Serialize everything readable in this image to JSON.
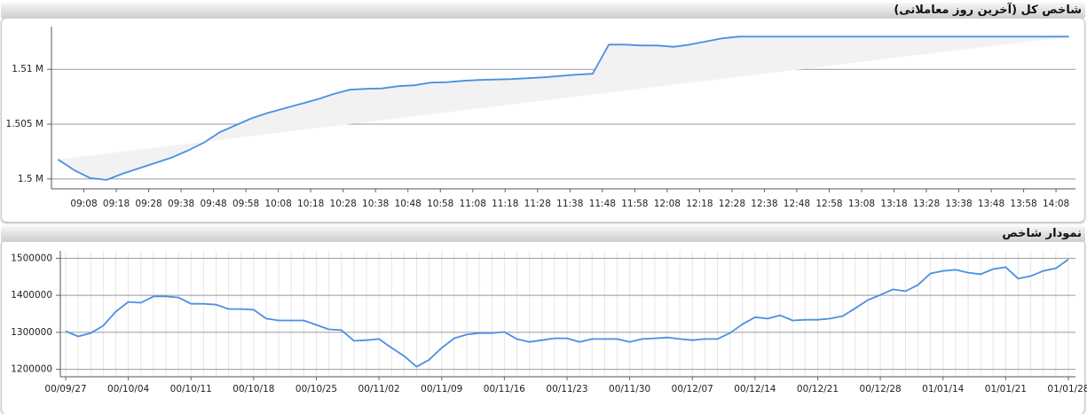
{
  "chart_data": [
    {
      "type": "line",
      "title": "شاخص کل (آخرین روز معاملاتی)",
      "x": [
        "09:00",
        "09:05",
        "09:10",
        "09:15",
        "09:20",
        "09:25",
        "09:30",
        "09:35",
        "09:40",
        "09:45",
        "09:50",
        "09:55",
        "10:00",
        "10:05",
        "10:10",
        "10:15",
        "10:20",
        "10:25",
        "10:30",
        "10:35",
        "10:40",
        "10:45",
        "10:50",
        "10:55",
        "11:00",
        "11:05",
        "11:10",
        "11:20",
        "11:30",
        "11:40",
        "11:45",
        "11:50",
        "11:55",
        "12:00",
        "12:05",
        "12:10",
        "12:15",
        "12:20",
        "12:25",
        "12:30",
        "14:12"
      ],
      "values": [
        1501774,
        1500806,
        1500081,
        1499919,
        1500484,
        1500968,
        1501452,
        1501935,
        1502581,
        1503306,
        1504274,
        1504919,
        1505565,
        1506048,
        1506452,
        1506855,
        1507258,
        1507742,
        1508145,
        1508226,
        1508266,
        1508468,
        1508548,
        1508790,
        1508831,
        1508952,
        1509032,
        1509113,
        1509274,
        1509516,
        1509597,
        1512258,
        1512258,
        1512177,
        1512177,
        1512056,
        1512258,
        1512540,
        1512823,
        1512984,
        1512984
      ],
      "color": "#4a90e2",
      "xlim": [
        "08:58",
        "14:14"
      ],
      "xticks": [
        "09:08",
        "09:18",
        "09:28",
        "09:38",
        "09:48",
        "09:58",
        "10:08",
        "10:18",
        "10:28",
        "10:38",
        "10:48",
        "10:58",
        "11:08",
        "11:18",
        "11:28",
        "11:38",
        "11:48",
        "11:58",
        "12:08",
        "12:18",
        "12:28",
        "12:38",
        "12:48",
        "12:58",
        "13:08",
        "13:18",
        "13:28",
        "13:38",
        "13:48",
        "13:58",
        "14:08"
      ],
      "ylim": [
        1499100,
        1513900
      ],
      "yticks": [
        {
          "value": 1500000,
          "label": "1.5 M"
        },
        {
          "value": 1505000,
          "label": "1.505 M"
        },
        {
          "value": 1510000,
          "label": "1.51 M"
        }
      ],
      "grid": true
    },
    {
      "type": "line",
      "title": "نمودار شاخص",
      "categories": [
        "00/09/27",
        null,
        null,
        null,
        null,
        "00/10/04",
        null,
        null,
        null,
        null,
        "00/10/11",
        null,
        null,
        null,
        null,
        "00/10/18",
        null,
        null,
        null,
        null,
        "00/10/25",
        null,
        null,
        null,
        null,
        "00/11/02",
        null,
        null,
        null,
        null,
        "00/11/09",
        null,
        null,
        null,
        null,
        "00/11/16",
        null,
        null,
        null,
        null,
        "00/11/23",
        null,
        null,
        null,
        null,
        "00/11/30",
        null,
        null,
        null,
        null,
        "00/12/07",
        null,
        null,
        null,
        null,
        "00/12/14",
        null,
        null,
        null,
        null,
        "00/12/21",
        null,
        null,
        null,
        null,
        "00/12/28",
        null,
        null,
        null,
        null,
        "01/01/14",
        null,
        null,
        null,
        null,
        "01/01/21",
        null,
        null,
        null,
        null,
        "01/01/28"
      ],
      "values": [
        1303000,
        1289000,
        1298000,
        1318000,
        1356000,
        1382000,
        1380000,
        1397000,
        1397000,
        1394000,
        1377000,
        1377000,
        1375000,
        1363000,
        1363000,
        1361000,
        1337000,
        1332000,
        1332000,
        1332000,
        1320000,
        1308000,
        1306000,
        1277000,
        1279000,
        1282000,
        1258000,
        1236000,
        1207000,
        1226000,
        1258000,
        1284000,
        1294000,
        1298000,
        1298000,
        1301000,
        1282000,
        1274000,
        1279000,
        1284000,
        1284000,
        1274000,
        1282000,
        1282000,
        1282000,
        1274000,
        1282000,
        1284000,
        1286000,
        1282000,
        1279000,
        1282000,
        1282000,
        1298000,
        1322000,
        1341000,
        1337000,
        1346000,
        1332000,
        1334000,
        1334000,
        1337000,
        1344000,
        1365000,
        1387000,
        1401000,
        1416000,
        1411000,
        1428000,
        1459000,
        1466000,
        1469000,
        1461000,
        1457000,
        1471000,
        1476000,
        1445000,
        1452000,
        1466000,
        1473000,
        1497000
      ],
      "color": "#4a90e2",
      "ylim": [
        1180000,
        1520000
      ],
      "yticks": [
        1200000,
        1300000,
        1400000,
        1500000
      ],
      "grid": true
    }
  ]
}
